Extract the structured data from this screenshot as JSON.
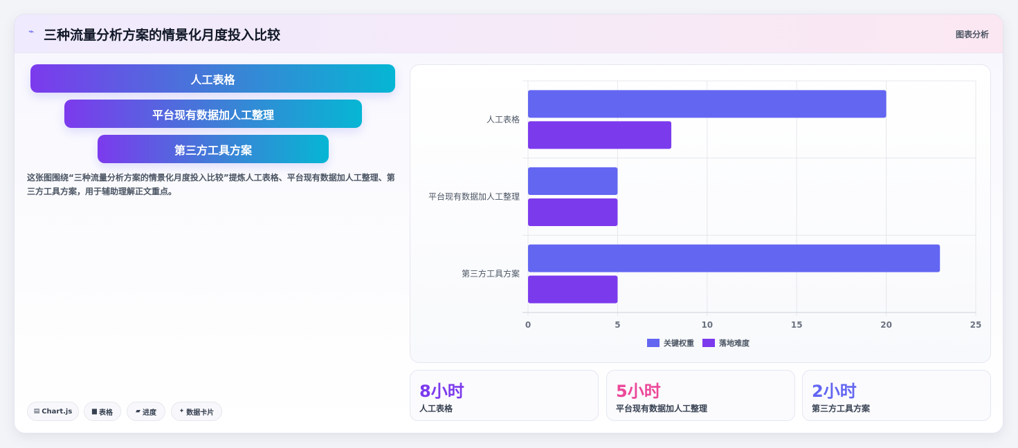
{
  "header": {
    "icon": "spark-icon",
    "title": "三种流量分析方案的情景化月度投入比较",
    "tag": "图表分析"
  },
  "pills": [
    "人工表格",
    "平台现有数据加人工整理",
    "第三方工具方案"
  ],
  "description": "这张图围绕“三种流量分析方案的情景化月度投入比较”提炼人工表格、平台现有数据加人工整理、第三方工具方案，用于辅助理解正文重点。",
  "chips": [
    {
      "icon": "chart-icon",
      "glyph": "▤",
      "label": "Chart.js"
    },
    {
      "icon": "table-icon",
      "glyph": "▆",
      "label": "表格"
    },
    {
      "icon": "progress-icon",
      "glyph": "▰",
      "label": "进度"
    },
    {
      "icon": "sparkle-icon",
      "glyph": "✦",
      "label": "数据卡片"
    }
  ],
  "chart_data": {
    "type": "bar",
    "orientation": "horizontal",
    "categories": [
      "人工表格",
      "平台现有数据加人工整理",
      "第三方工具方案"
    ],
    "series": [
      {
        "name": "关键权重",
        "values": [
          20,
          5,
          23
        ],
        "color": "#6366f1"
      },
      {
        "name": "落地难度",
        "values": [
          8,
          5,
          5
        ],
        "color": "#7c3aed"
      }
    ],
    "xlim": [
      0,
      25
    ],
    "xticks": [
      "0",
      "5",
      "10",
      "15",
      "20",
      "25"
    ],
    "grid": true,
    "legend": "bottom"
  },
  "stats": [
    {
      "value": "8小时",
      "label": "人工表格",
      "color": "#7c3aed"
    },
    {
      "value": "5小时",
      "label": "平台现有数据加人工整理",
      "color": "#ec4899"
    },
    {
      "value": "2小时",
      "label": "第三方工具方案",
      "color": "#6366f1"
    }
  ]
}
